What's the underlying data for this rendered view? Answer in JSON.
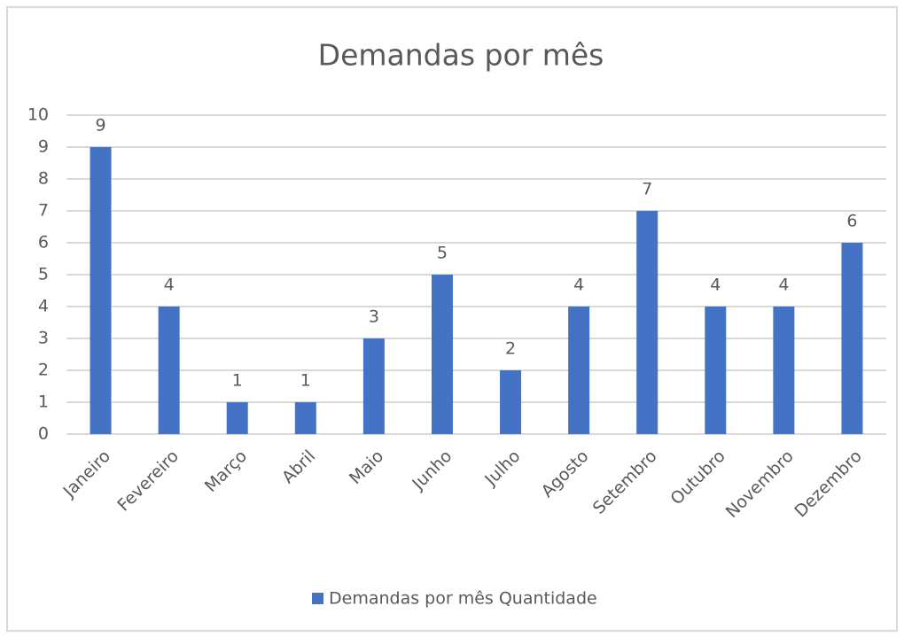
{
  "chart_data": {
    "type": "bar",
    "title": "Demandas por mês",
    "categories": [
      "Janeiro",
      "Fevereiro",
      "Março",
      "Abril",
      "Maio",
      "Junho",
      "Julho",
      "Agosto",
      "Setembro",
      "Outubro",
      "Novembro",
      "Dezembro"
    ],
    "series": [
      {
        "name": "Demandas por mês Quantidade",
        "color": "#4472c4",
        "values": [
          9,
          4,
          1,
          1,
          3,
          5,
          2,
          4,
          7,
          4,
          4,
          6
        ]
      }
    ],
    "ylim": [
      0,
      10
    ],
    "yticks": [
      0,
      1,
      2,
      3,
      4,
      5,
      6,
      7,
      8,
      9,
      10
    ],
    "grid": true,
    "legend": "bottom"
  }
}
